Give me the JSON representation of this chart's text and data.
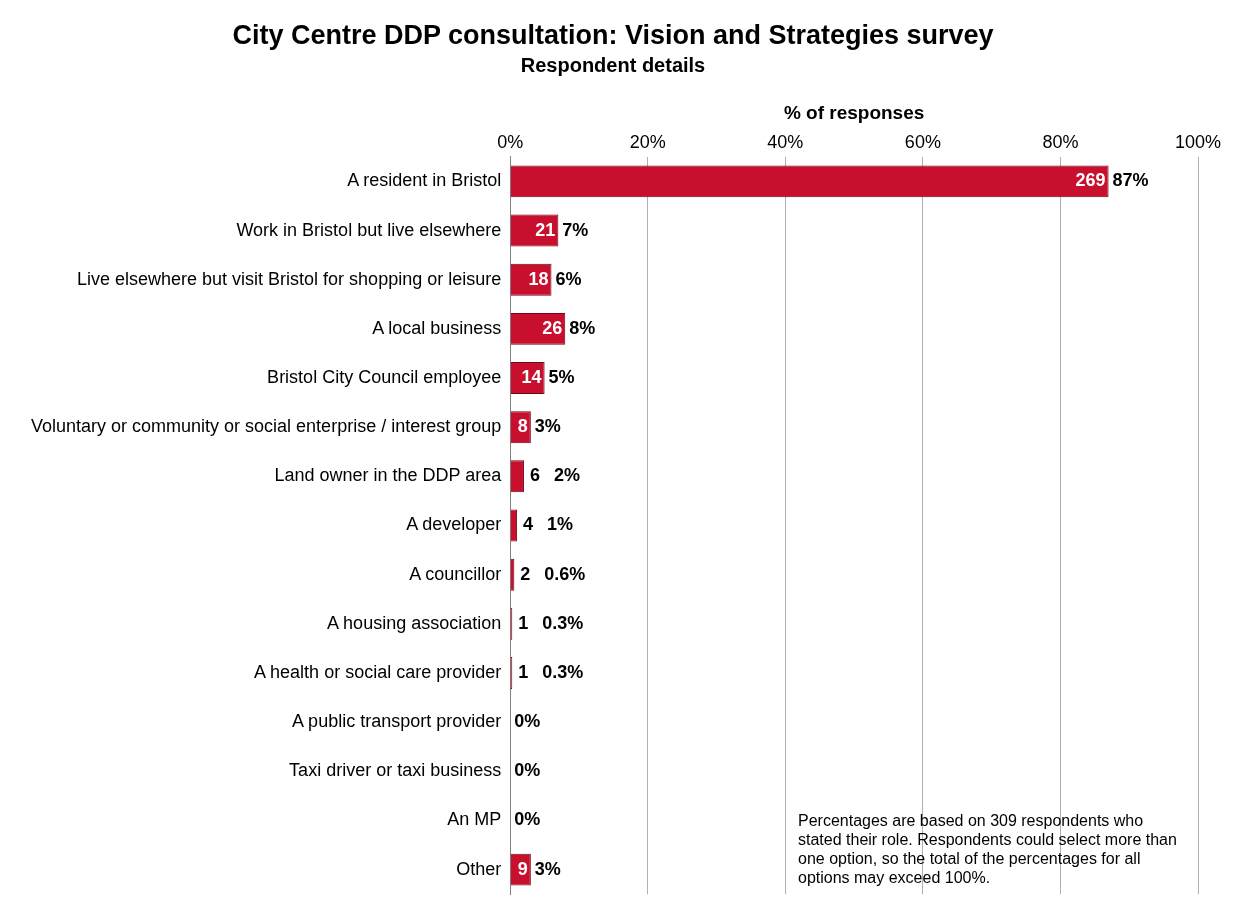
{
  "chart_data": {
    "type": "bar",
    "orientation": "horizontal",
    "title": "City Centre DDP consultation: Vision and Strategies survey",
    "subtitle": "Respondent details",
    "xlabel": "% of responses",
    "categories": [
      "A resident in Bristol",
      "Work in Bristol but live elsewhere",
      "Live elsewhere but visit Bristol for shopping or leisure",
      "A local business",
      "Bristol City Council employee",
      "Voluntary or community or social enterprise / interest group",
      "Land owner in the DDP area",
      "A developer",
      "A councillor",
      "A housing association",
      "A health or social care provider",
      "A public transport provider",
      "Taxi driver or taxi business",
      "An MP",
      "Other"
    ],
    "values": [
      87,
      7,
      6,
      8,
      5,
      3,
      2,
      1,
      0.6,
      0.3,
      0.3,
      0,
      0,
      0,
      3
    ],
    "value_labels": [
      "269 87%",
      "21 7%",
      "18 6%",
      "26 8%",
      "14 5%",
      "8 3%",
      "6 2%",
      "4 1%",
      "2 0.6%",
      "1 0.3%",
      "1 0.3%",
      "0%",
      "0%",
      "0%",
      "9 3%"
    ],
    "color": "#c8102e",
    "xlim": [
      0,
      100
    ],
    "xticks": [
      {
        "value": 0,
        "label": "0%"
      },
      {
        "value": 20,
        "label": "20%"
      },
      {
        "value": 40,
        "label": "40%"
      },
      {
        "value": 60,
        "label": "60%"
      },
      {
        "value": 80,
        "label": "80%"
      },
      {
        "value": 100,
        "label": "100%"
      }
    ],
    "grid": "x",
    "legend": false,
    "annotations": [
      "Percentages are based on 309 respondents who stated their role. Respondents could select more than one option, so the total of the percentages for all options may exceed 100%."
    ]
  }
}
